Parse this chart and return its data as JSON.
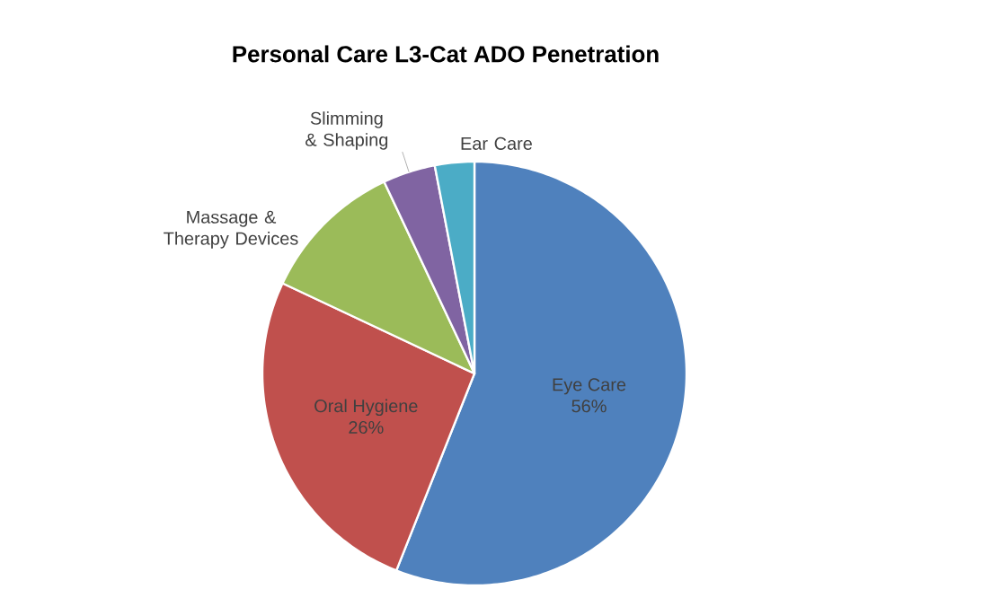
{
  "chart_data": {
    "type": "pie",
    "title": "Personal Care L3-Cat ADO Penetration",
    "categories": [
      "Eye Care",
      "Oral Hygiene",
      "Massage & Therapy Devices",
      "Slimming & Shaping",
      "Ear Care"
    ],
    "values": [
      56,
      26,
      11,
      4,
      3
    ],
    "colors": [
      "#4f81bd",
      "#c0504d",
      "#9bbb59",
      "#8064a2",
      "#4bacc6"
    ],
    "value_labels": [
      "56%",
      "26%",
      null,
      null,
      null
    ]
  }
}
